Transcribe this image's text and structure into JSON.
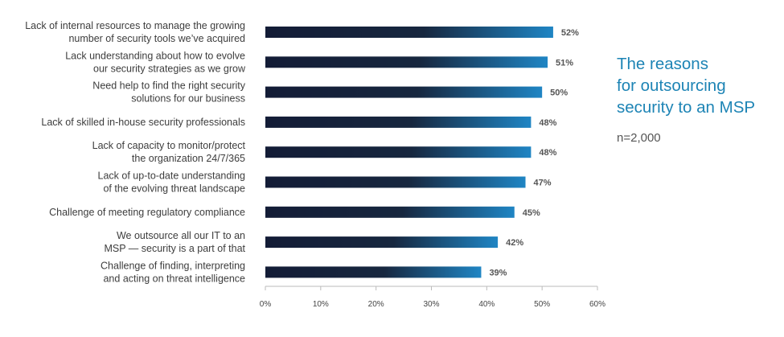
{
  "chart_data": {
    "type": "bar",
    "orientation": "horizontal",
    "title": "The reasons for outsourcing security to an MSP",
    "subtitle": "n=2,000",
    "categories": [
      [
        "Lack of internal resources to manage the growing",
        "number of security tools we’ve acquired"
      ],
      [
        "Lack understanding about how to evolve",
        "our security strategies as we grow"
      ],
      [
        "Need help to find the right security",
        "solutions for our business"
      ],
      [
        "Lack of skilled in-house security professionals"
      ],
      [
        "Lack of capacity to monitor/protect",
        "the organization 24/7/365"
      ],
      [
        "Lack of up-to-date understanding",
        "of the evolving threat landscape"
      ],
      [
        "Challenge of meeting regulatory compliance"
      ],
      [
        "We outsource all our IT to an",
        "MSP — security is a part of that"
      ],
      [
        "Challenge of finding, interpreting",
        "and acting on threat intelligence"
      ]
    ],
    "values": [
      52,
      51,
      50,
      48,
      48,
      47,
      45,
      42,
      39
    ],
    "value_labels": [
      "52%",
      "51%",
      "50%",
      "48%",
      "48%",
      "47%",
      "45%",
      "42%",
      "39%"
    ],
    "xlim": [
      0,
      60
    ],
    "xticks": [
      0,
      10,
      20,
      30,
      40,
      50,
      60
    ],
    "xtick_labels": [
      "0%",
      "10%",
      "20%",
      "30%",
      "40%",
      "50%",
      "60%"
    ],
    "xlabel": "",
    "ylabel": "",
    "grid": false,
    "legend": "none",
    "colors": {
      "bar_start": "#131c36",
      "bar_mid": "#17273f",
      "bar_end": "#1f85c4",
      "title": "#1d84b5",
      "axis": "#bbbbbb"
    }
  },
  "sidebar": {
    "title_lines": [
      "The reasons",
      "for outsourcing",
      "security to an MSP"
    ],
    "subtitle": "n=2,000"
  }
}
